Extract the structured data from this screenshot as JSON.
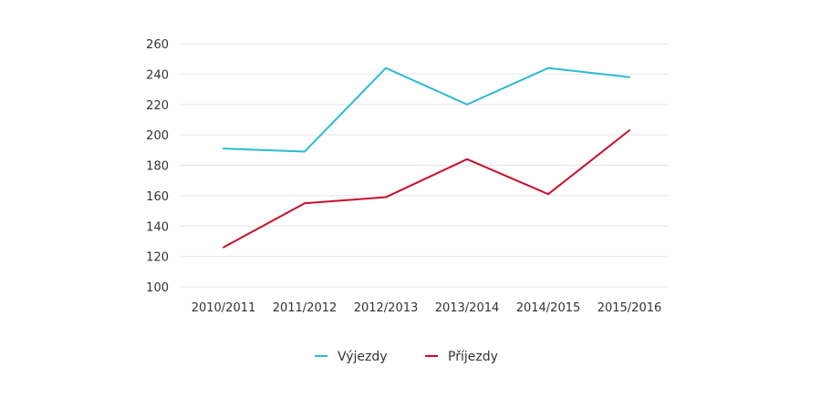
{
  "chart_data": {
    "type": "line",
    "categories": [
      "2010/2011",
      "2011/2012",
      "2012/2013",
      "2013/2014",
      "2014/2015",
      "2015/2016"
    ],
    "series": [
      {
        "name": "Výjezdy",
        "color": "#2bbbd3",
        "values": [
          191,
          189,
          244,
          220,
          244,
          238
        ]
      },
      {
        "name": "Příjezdy",
        "color": "#c8102e",
        "values": [
          126,
          155,
          159,
          184,
          161,
          203
        ]
      }
    ],
    "y_ticks": [
      100,
      120,
      140,
      160,
      180,
      200,
      220,
      240,
      260
    ],
    "ylim": [
      100,
      260
    ],
    "grid": true,
    "gridline_color": "#e6e6e6",
    "legend_position": "bottom-center"
  }
}
